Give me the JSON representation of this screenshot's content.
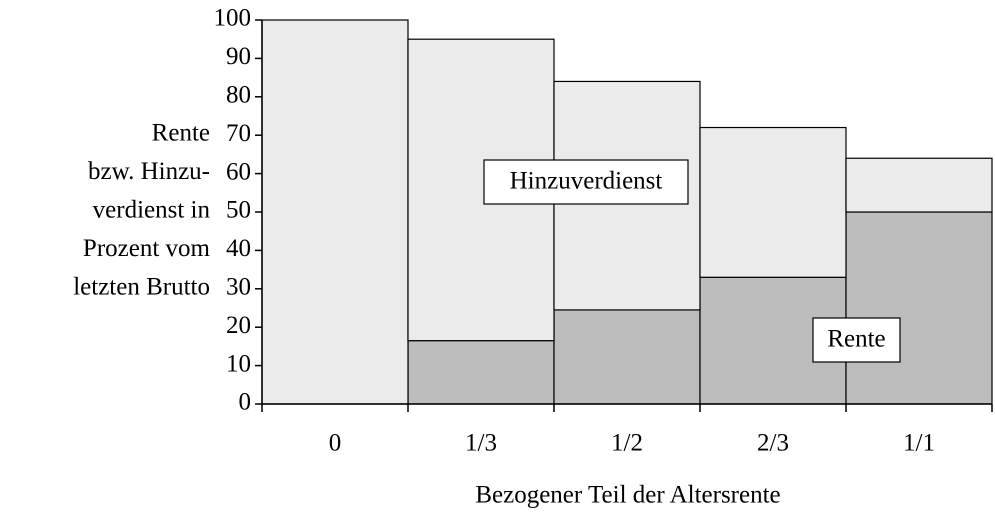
{
  "chart_data": {
    "type": "bar",
    "stacked": true,
    "categories": [
      "0",
      "1/3",
      "1/2",
      "2/3",
      "1/1"
    ],
    "series": [
      {
        "name": "Rente",
        "color": "#bdbdbd",
        "values": [
          0,
          16.5,
          24.5,
          33,
          50
        ]
      },
      {
        "name": "Hinzuverdienst",
        "color": "#ebebeb",
        "values": [
          100,
          78.5,
          59.5,
          39,
          14
        ]
      }
    ],
    "ylabel": [
      "Rente",
      "bzw. Hinzu-",
      "verdienst in",
      "Prozent vom",
      "letzten Brutto"
    ],
    "xlabel": "Bezogener Teil der Altersrente",
    "ylim": [
      0,
      100
    ],
    "yticks": [
      0,
      10,
      20,
      30,
      40,
      50,
      60,
      70,
      80,
      90,
      100
    ]
  }
}
